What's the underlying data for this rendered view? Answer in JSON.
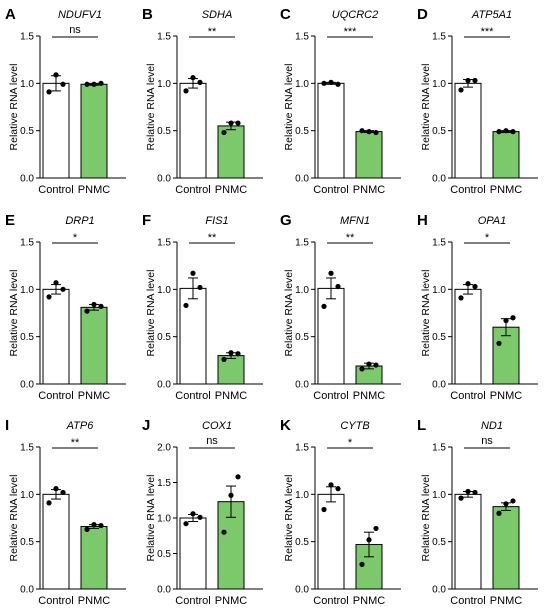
{
  "colors": {
    "control": "#ffffff",
    "pnmc": "#7cc96c",
    "stroke": "#000000"
  },
  "chart_data": [
    {
      "type": "bar",
      "panel": "A",
      "title": "NDUFV1",
      "ylabel": "Relative RNA level",
      "categories": [
        "Control",
        "PNMC"
      ],
      "values": [
        1.0,
        0.99
      ],
      "errors": [
        0.08,
        0.01
      ],
      "points": [
        [
          0.91,
          1.09,
          0.99
        ],
        [
          0.99,
          0.99,
          1.0
        ]
      ],
      "ylim": [
        0,
        1.5
      ],
      "yticks": [
        "0.0",
        "0.5",
        "1.0",
        "1.5"
      ],
      "significance": "ns"
    },
    {
      "type": "bar",
      "panel": "B",
      "title": "SDHA",
      "ylabel": "Relative RNA level",
      "categories": [
        "Control",
        "PNMC"
      ],
      "values": [
        1.0,
        0.55
      ],
      "errors": [
        0.05,
        0.04
      ],
      "points": [
        [
          0.92,
          1.06,
          1.01
        ],
        [
          0.48,
          0.58,
          0.58
        ]
      ],
      "ylim": [
        0,
        1.5
      ],
      "yticks": [
        "0.0",
        "0.5",
        "1.0",
        "1.5"
      ],
      "significance": "**"
    },
    {
      "type": "bar",
      "panel": "C",
      "title": "UQCRC2",
      "ylabel": "Relative RNA level",
      "categories": [
        "Control",
        "PNMC"
      ],
      "values": [
        1.0,
        0.49
      ],
      "errors": [
        0.01,
        0.01
      ],
      "points": [
        [
          1.0,
          1.01,
          0.99
        ],
        [
          0.5,
          0.49,
          0.48
        ]
      ],
      "ylim": [
        0,
        1.5
      ],
      "yticks": [
        "0.0",
        "0.5",
        "1.0",
        "1.5"
      ],
      "significance": "***"
    },
    {
      "type": "bar",
      "panel": "D",
      "title": "ATP5A1",
      "ylabel": "Relative RNA level",
      "categories": [
        "Control",
        "PNMC"
      ],
      "values": [
        1.0,
        0.49
      ],
      "errors": [
        0.04,
        0.01
      ],
      "points": [
        [
          0.93,
          1.03,
          1.03
        ],
        [
          0.49,
          0.5,
          0.49
        ]
      ],
      "ylim": [
        0,
        1.5
      ],
      "yticks": [
        "0.0",
        "0.5",
        "1.0",
        "1.5"
      ],
      "significance": "***"
    },
    {
      "type": "bar",
      "panel": "E",
      "title": "DRP1",
      "ylabel": "Relative RNA level",
      "categories": [
        "Control",
        "PNMC"
      ],
      "values": [
        1.0,
        0.81
      ],
      "errors": [
        0.05,
        0.03
      ],
      "points": [
        [
          0.92,
          1.07,
          1.0
        ],
        [
          0.77,
          0.84,
          0.82
        ]
      ],
      "ylim": [
        0,
        1.5
      ],
      "yticks": [
        "0.0",
        "0.5",
        "1.0",
        "1.5"
      ],
      "significance": "*"
    },
    {
      "type": "bar",
      "panel": "F",
      "title": "FIS1",
      "ylabel": "Relative RNA level",
      "categories": [
        "Control",
        "PNMC"
      ],
      "values": [
        1.01,
        0.3
      ],
      "errors": [
        0.11,
        0.03
      ],
      "points": [
        [
          0.83,
          1.17,
          1.02
        ],
        [
          0.26,
          0.33,
          0.32
        ]
      ],
      "ylim": [
        0,
        1.5
      ],
      "yticks": [
        "0.0",
        "0.5",
        "1.0",
        "1.5"
      ],
      "significance": "**"
    },
    {
      "type": "bar",
      "panel": "G",
      "title": "MFN1",
      "ylabel": "Relative RNA level",
      "categories": [
        "Control",
        "PNMC"
      ],
      "values": [
        1.01,
        0.19
      ],
      "errors": [
        0.11,
        0.03
      ],
      "points": [
        [
          0.82,
          1.17,
          1.03
        ],
        [
          0.16,
          0.21,
          0.2
        ]
      ],
      "ylim": [
        0,
        1.5
      ],
      "yticks": [
        "0.0",
        "0.5",
        "1.0",
        "1.5"
      ],
      "significance": "**"
    },
    {
      "type": "bar",
      "panel": "H",
      "title": "OPA1",
      "ylabel": "Relative RNA level",
      "categories": [
        "Control",
        "PNMC"
      ],
      "values": [
        1.0,
        0.6
      ],
      "errors": [
        0.05,
        0.09
      ],
      "points": [
        [
          0.91,
          1.06,
          1.03
        ],
        [
          0.43,
          0.67,
          0.7
        ]
      ],
      "ylim": [
        0,
        1.5
      ],
      "yticks": [
        "0.0",
        "0.5",
        "1.0",
        "1.5"
      ],
      "significance": "*"
    },
    {
      "type": "bar",
      "panel": "I",
      "title": "ATP6",
      "ylabel": "Relative RNA level",
      "categories": [
        "Control",
        "PNMC"
      ],
      "values": [
        1.0,
        0.66
      ],
      "errors": [
        0.05,
        0.02
      ],
      "points": [
        [
          0.91,
          1.06,
          1.02
        ],
        [
          0.63,
          0.68,
          0.67
        ]
      ],
      "ylim": [
        0,
        1.5
      ],
      "yticks": [
        "0.0",
        "0.5",
        "1.0",
        "1.5"
      ],
      "significance": "**"
    },
    {
      "type": "bar",
      "panel": "J",
      "title": "COX1",
      "ylabel": "Relative RNA level",
      "categories": [
        "Control",
        "PNMC"
      ],
      "values": [
        1.0,
        1.23
      ],
      "errors": [
        0.05,
        0.22
      ],
      "points": [
        [
          0.92,
          1.06,
          1.01
        ],
        [
          0.8,
          1.32,
          1.58
        ]
      ],
      "ylim": [
        0,
        2.0
      ],
      "yticks": [
        "0.0",
        "0.5",
        "1.0",
        "1.5",
        "2.0"
      ],
      "significance": "ns"
    },
    {
      "type": "bar",
      "panel": "K",
      "title": "CYTB",
      "ylabel": "Relative RNA level",
      "categories": [
        "Control",
        "PNMC"
      ],
      "values": [
        1.0,
        0.47
      ],
      "errors": [
        0.08,
        0.13
      ],
      "points": [
        [
          0.84,
          1.1,
          1.06
        ],
        [
          0.26,
          0.52,
          0.64
        ]
      ],
      "ylim": [
        0,
        1.5
      ],
      "yticks": [
        "0.0",
        "0.5",
        "1.0",
        "1.5"
      ],
      "significance": "*"
    },
    {
      "type": "bar",
      "panel": "L",
      "title": "ND1",
      "ylabel": "Relative RNA level",
      "categories": [
        "Control",
        "PNMC"
      ],
      "values": [
        1.0,
        0.87
      ],
      "errors": [
        0.03,
        0.04
      ],
      "points": [
        [
          0.96,
          1.03,
          1.02
        ],
        [
          0.8,
          0.9,
          0.93
        ]
      ],
      "ylim": [
        0,
        1.5
      ],
      "yticks": [
        "0.0",
        "0.5",
        "1.0",
        "1.5"
      ],
      "significance": "ns"
    }
  ]
}
